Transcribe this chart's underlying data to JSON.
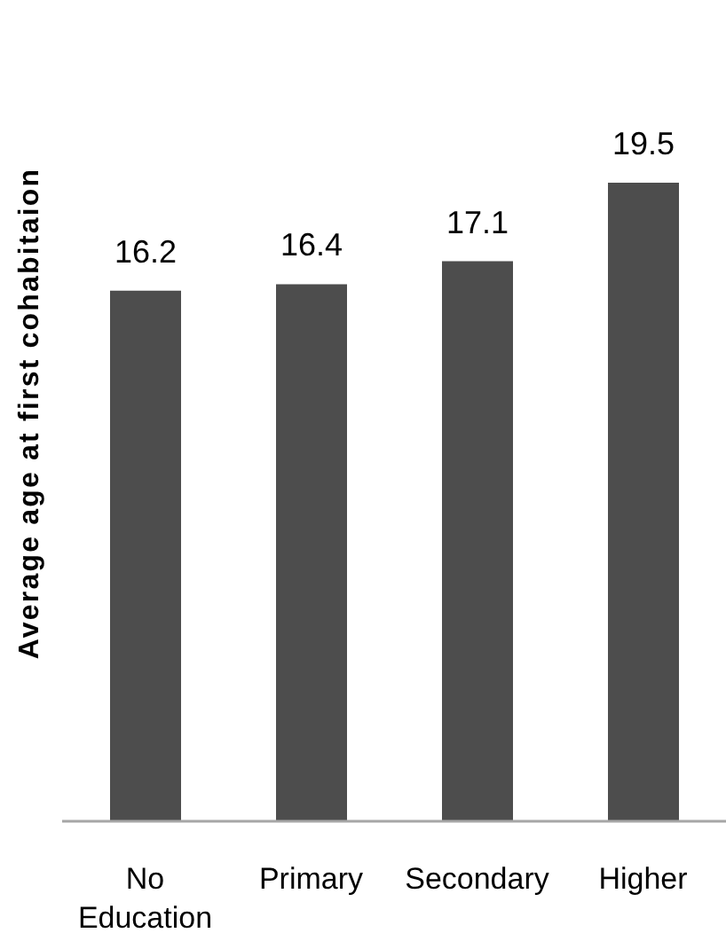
{
  "chart_data": {
    "type": "bar",
    "ylabel": "Average age at first cohabitaion",
    "categories": [
      "No Education",
      "Primary",
      "Secondary",
      "Higher"
    ],
    "values": [
      16.2,
      16.4,
      17.1,
      19.5
    ],
    "color": "#4d4d4d",
    "data_labels": true,
    "tick_labels": "x"
  }
}
